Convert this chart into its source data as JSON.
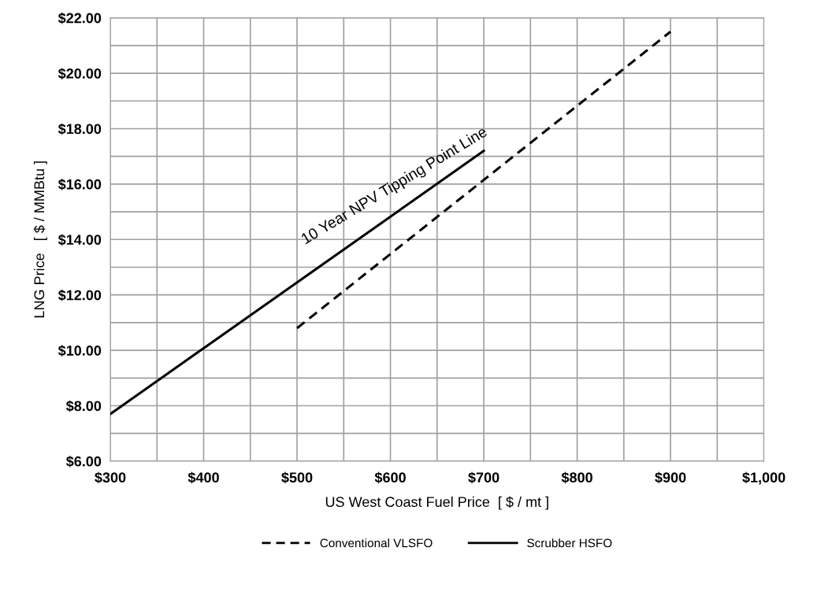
{
  "chart_data": {
    "type": "line",
    "xlabel": "US West Coast Fuel Price  [ $ / mt ]",
    "ylabel": "LNG Price   [ $ / MMBtu ]",
    "series": [
      {
        "name": "Conventional VLSFO",
        "color": "#000000",
        "line_style": "dashed",
        "x": [
          500,
          900
        ],
        "values": [
          10.8,
          21.5
        ]
      },
      {
        "name": "Scrubber HSFO",
        "color": "#000000",
        "line_style": "solid",
        "x": [
          300,
          700
        ],
        "values": [
          7.7,
          17.2
        ]
      }
    ],
    "xlim": [
      300,
      1000
    ],
    "ylim": [
      6,
      22
    ],
    "xticks": [
      {
        "value": 300,
        "label": "$300"
      },
      {
        "value": 400,
        "label": "$400"
      },
      {
        "value": 500,
        "label": "$500"
      },
      {
        "value": 600,
        "label": "$600"
      },
      {
        "value": 700,
        "label": "$700"
      },
      {
        "value": 800,
        "label": "$800"
      },
      {
        "value": 900,
        "label": "$900"
      },
      {
        "value": 1000,
        "label": "$1,000"
      }
    ],
    "yticks": [
      {
        "value": 6,
        "label": "$6.00"
      },
      {
        "value": 8,
        "label": "$8.00"
      },
      {
        "value": 10,
        "label": "$10.00"
      },
      {
        "value": 12,
        "label": "$12.00"
      },
      {
        "value": 14,
        "label": "$14.00"
      },
      {
        "value": 16,
        "label": "$16.00"
      },
      {
        "value": 18,
        "label": "$18.00"
      },
      {
        "value": 20,
        "label": "$20.00"
      },
      {
        "value": 22,
        "label": "$22.00"
      }
    ],
    "grid": true,
    "legend": "bottom",
    "marker": "none",
    "annotations": [
      "10 Year NPV Tipping Point Line"
    ]
  }
}
